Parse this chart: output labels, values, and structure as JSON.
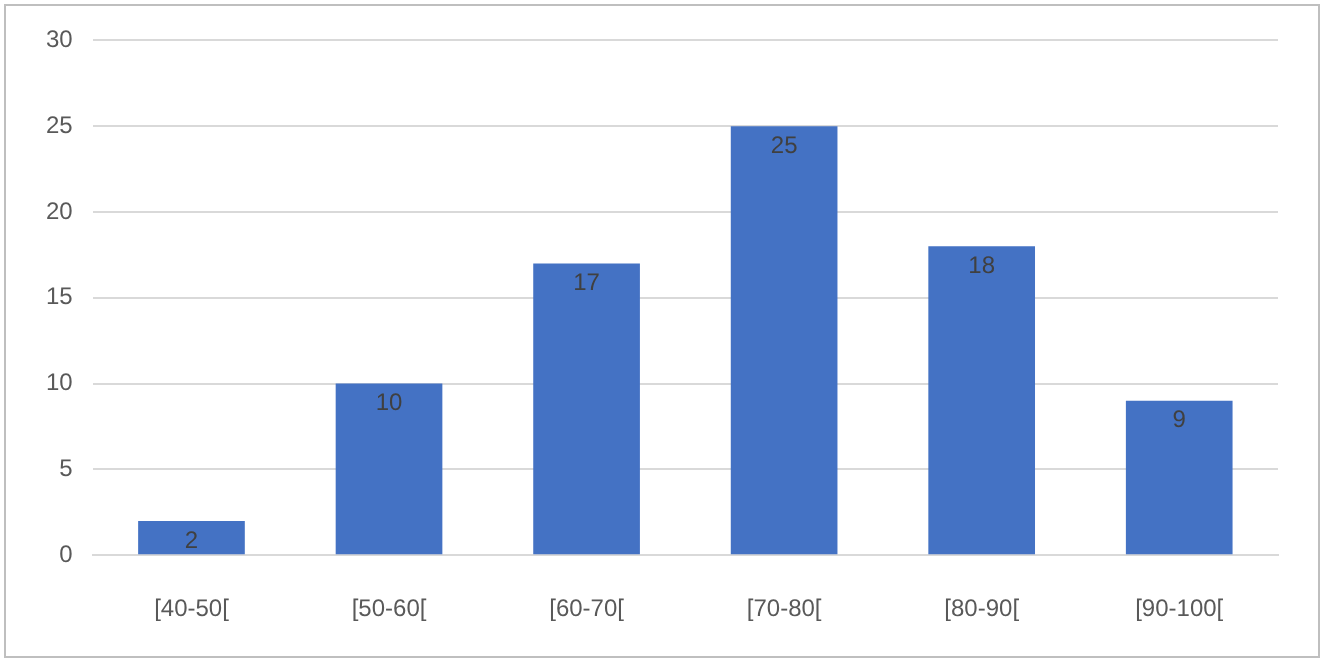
{
  "chart_data": {
    "type": "bar",
    "categories": [
      "[40-50[",
      "[50-60[",
      "[60-70[",
      "[70-80[",
      "[80-90[",
      "[90-100["
    ],
    "values": [
      2,
      10,
      17,
      25,
      18,
      9
    ],
    "color": "#4472c4",
    "ylim": [
      0,
      30
    ],
    "yticks": [
      0,
      5,
      10,
      15,
      20,
      25,
      30
    ],
    "grid": "y",
    "data_labels": true
  }
}
